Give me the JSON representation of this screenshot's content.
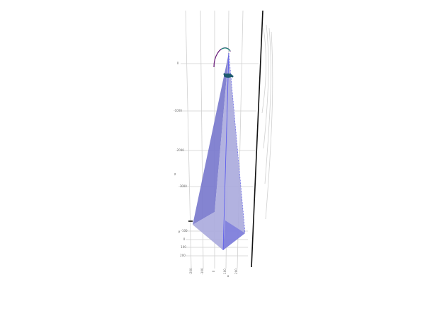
{
  "scene": {
    "z_axis": {
      "title": "z",
      "ticks": [
        "0",
        "-1000",
        "-2000",
        "-3000"
      ]
    },
    "y_axis": {
      "title": "y",
      "ticks": [
        "-100",
        "0",
        "100",
        "200"
      ]
    },
    "x_axis": {
      "title": "x",
      "ticks": [
        "-200",
        "-100",
        "0",
        "100",
        "200"
      ]
    }
  }
}
